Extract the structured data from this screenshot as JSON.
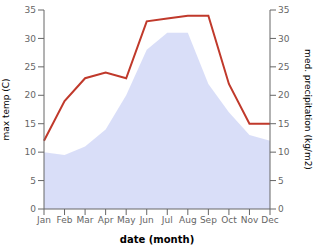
{
  "chart_data": {
    "type": "line",
    "xlabel": "date (month)",
    "ylabel": "max temp (C)",
    "y2label": "med. precipitation (kg/m2)",
    "categories": [
      "Jan",
      "Feb",
      "Mar",
      "Apr",
      "May",
      "Jun",
      "Jul",
      "Aug",
      "Sep",
      "Oct",
      "Nov",
      "Dec"
    ],
    "series": [
      {
        "type": "area",
        "color": "#c5cdf5",
        "values": [
          10,
          9.5,
          11,
          14,
          20,
          28,
          31,
          31,
          22,
          17,
          13,
          12
        ]
      },
      {
        "type": "line",
        "color": "#c0392b",
        "axis": "y2",
        "values": [
          12,
          19,
          23,
          24,
          23,
          33,
          33.5,
          34,
          34,
          22,
          15,
          15
        ]
      }
    ],
    "ylim": [
      0,
      35
    ],
    "yticks": [
      0,
      5,
      10,
      15,
      20,
      25,
      30,
      35
    ],
    "y2lim": [
      0,
      35
    ],
    "y2ticks": [
      0,
      5,
      10,
      15,
      20,
      25,
      30,
      35
    ]
  }
}
